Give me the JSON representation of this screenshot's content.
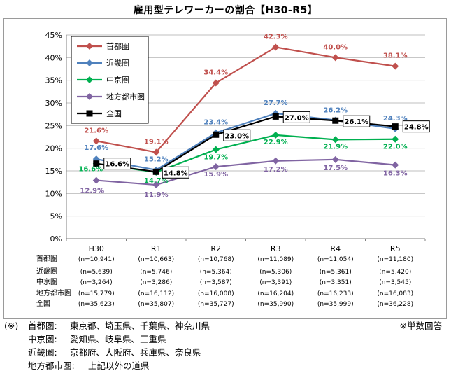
{
  "chart_data": {
    "type": "line",
    "title": "雇用型テレワーカーの割合【H30-R5】",
    "categories": [
      "H30",
      "R1",
      "R2",
      "R3",
      "R4",
      "R5"
    ],
    "ylim": [
      0,
      45
    ],
    "yticks": [
      "0%",
      "5%",
      "10%",
      "15%",
      "20%",
      "25%",
      "30%",
      "35%",
      "40%",
      "45%"
    ],
    "grid": true,
    "legend_position": "top-left",
    "series": [
      {
        "name": "首都圏",
        "color": "#c0504d",
        "marker": "diamond",
        "values": [
          21.6,
          19.1,
          34.4,
          42.3,
          40.0,
          38.1
        ],
        "labels": [
          "21.6%",
          "19.1%",
          "34.4%",
          "42.3%",
          "40.0%",
          "38.1%"
        ],
        "n": [
          "(n=10,941)",
          "(n=10,663)",
          "(n=10,768)",
          "(n=11,089)",
          "(n=11,054)",
          "(n=11,180)"
        ]
      },
      {
        "name": "近畿圏",
        "color": "#4f81bd",
        "marker": "diamond",
        "values": [
          17.6,
          15.2,
          23.4,
          27.7,
          26.2,
          24.3
        ],
        "labels": [
          "17.6%",
          "15.2%",
          "23.4%",
          "27.7%",
          "26.2%",
          "24.3%"
        ],
        "n": [
          "(n=5,639)",
          "(n=5,746)",
          "(n=5,364)",
          "(n=5,306)",
          "(n=5,361)",
          "(n=5,420)"
        ]
      },
      {
        "name": "中京圏",
        "color": "#00b050",
        "marker": "diamond",
        "values": [
          16.6,
          14.7,
          19.7,
          22.9,
          21.9,
          22.0
        ],
        "labels": [
          "16.6%",
          "14.7%",
          "19.7%",
          "22.9%",
          "21.9%",
          "22.0%"
        ],
        "n": [
          "(n=3,264)",
          "(n=3,286)",
          "(n=3,587)",
          "(n=3,391)",
          "(n=3,351)",
          "(n=3,545)"
        ]
      },
      {
        "name": "地方都市圏",
        "color": "#8064a2",
        "marker": "diamond",
        "values": [
          12.9,
          11.9,
          15.9,
          17.2,
          17.5,
          16.3
        ],
        "labels": [
          "12.9%",
          "11.9%",
          "15.9%",
          "17.2%",
          "17.5%",
          "16.3%"
        ],
        "n": [
          "(n=15,779)",
          "(n=16,112)",
          "(n=16,008)",
          "(n=16,204)",
          "(n=16,233)",
          "(n=16,083)"
        ]
      },
      {
        "name": "全国",
        "color": "#000000",
        "marker": "square",
        "values": [
          16.6,
          14.8,
          23.0,
          27.0,
          26.1,
          24.8
        ],
        "labels": [
          "16.6%",
          "14.8%",
          "23.0%",
          "27.0%",
          "26.1%",
          "24.8%"
        ],
        "n": [
          "(n=35,623)",
          "(n=35,807)",
          "(n=35,727)",
          "(n=35,990)",
          "(n=35,999)",
          "(n=36,228)"
        ]
      }
    ]
  },
  "notes": {
    "prefix": "(※)",
    "rows": [
      {
        "key": "首都圏:",
        "value": "東京都、埼玉県、千葉県、神奈川県"
      },
      {
        "key": "中京圏:",
        "value": "愛知県、岐阜県、三重県"
      },
      {
        "key": "近畿圏:",
        "value": "京都府、大阪府、兵庫県、奈良県"
      },
      {
        "key": "地方都市圏:",
        "value": "上記以外の道県"
      }
    ],
    "right": "※単数回答"
  }
}
